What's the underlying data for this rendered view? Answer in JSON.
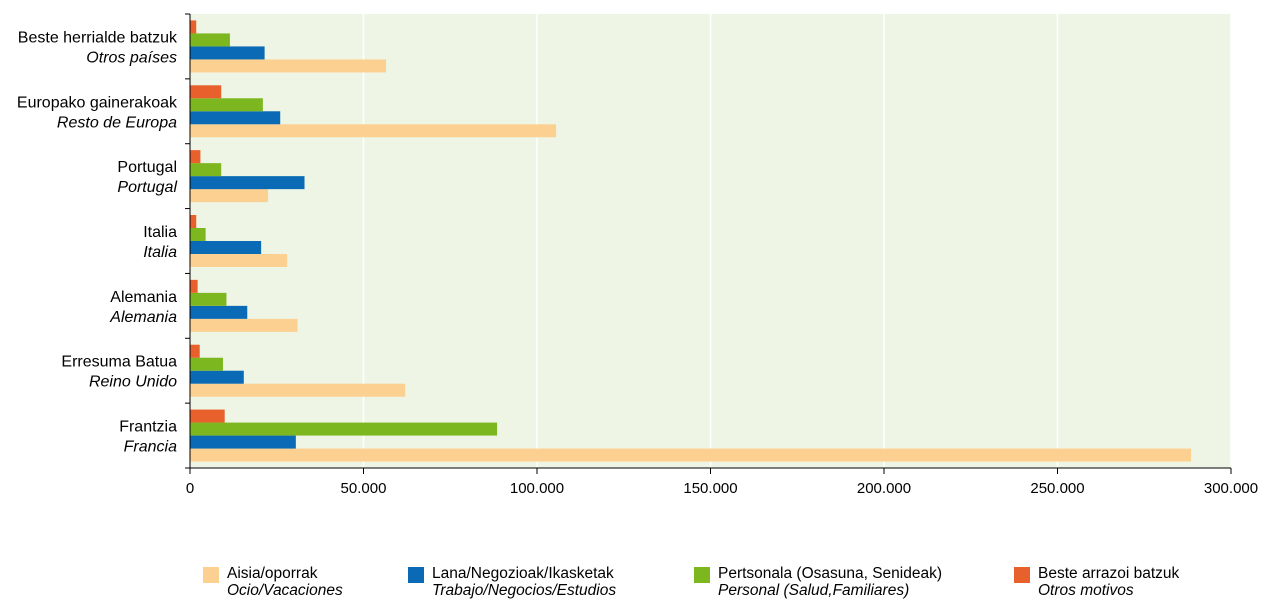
{
  "chart_data": {
    "type": "bar",
    "orientation": "horizontal",
    "categories": [
      {
        "label": "Frantzia",
        "label_es": "Francia"
      },
      {
        "label": "Erresuma Batua",
        "label_es": "Reino Unido"
      },
      {
        "label": "Alemania",
        "label_es": "Alemania"
      },
      {
        "label": "Italia",
        "label_es": "Italia"
      },
      {
        "label": "Portugal",
        "label_es": "Portugal"
      },
      {
        "label": "Europako gainerakoak",
        "label_es": "Resto de Europa"
      },
      {
        "label": "Beste herrialde batzuk",
        "label_es": "Otros países"
      }
    ],
    "series": [
      {
        "name": "Aisia/oporrak",
        "name_es": "Ocio/Vacaciones",
        "color": "#fbd090",
        "values": [
          288500,
          62000,
          31000,
          28000,
          22500,
          105500,
          56500
        ]
      },
      {
        "name": "Lana/Negozioak/Ikasketak",
        "name_es": "Trabajo/Negocios/Estudios",
        "color": "#0a6ab5",
        "values": [
          30500,
          15500,
          16500,
          20500,
          33000,
          26000,
          21500
        ]
      },
      {
        "name": "Pertsonala (Osasuna, Senideak)",
        "name_es": "Personal (Salud,Familiares)",
        "color": "#7cb720",
        "values": [
          88500,
          9500,
          10500,
          4500,
          9000,
          21000,
          11500
        ]
      },
      {
        "name": "Beste arrazoi batzuk",
        "name_es": "Otros motivos",
        "color": "#e8602c",
        "values": [
          10000,
          2800,
          2200,
          1800,
          3000,
          9000,
          1800
        ]
      }
    ],
    "xlim": [
      0,
      300000
    ],
    "xticks": [
      0,
      50000,
      100000,
      150000,
      200000,
      250000,
      300000
    ],
    "xtick_labels": [
      "0",
      "50.000",
      "100.000",
      "150.000",
      "200.000",
      "250.000",
      "300.000"
    ],
    "grid": true,
    "legend_position": "bottom",
    "plot_background": "#eef5e4"
  }
}
